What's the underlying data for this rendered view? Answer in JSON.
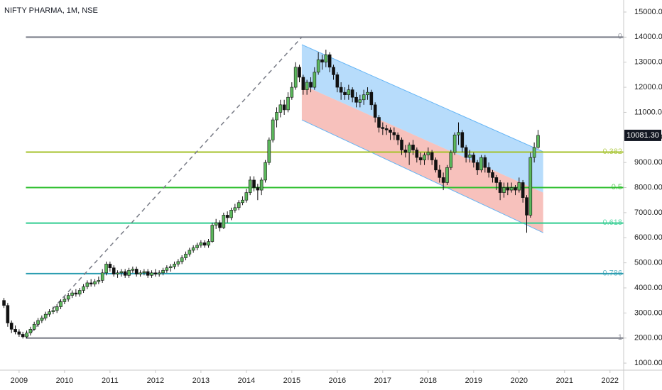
{
  "chart_data": {
    "type": "candlestick",
    "title": "NIFTY PHARMA, 1M, NSE",
    "xlim": [
      2008.58,
      2022.3
    ],
    "xticks": [
      2009,
      2010,
      2011,
      2012,
      2013,
      2014,
      2015,
      2016,
      2017,
      2018,
      2019,
      2020,
      2021,
      2022
    ],
    "ylim": [
      720,
      15480
    ],
    "yticks": [
      {
        "value": 1000,
        "label": "1000.00"
      },
      {
        "value": 2000,
        "label": "2000.00"
      },
      {
        "value": 3000,
        "label": "3000.00"
      },
      {
        "value": 4000,
        "label": "4000.00"
      },
      {
        "value": 5000,
        "label": "5000.00"
      },
      {
        "value": 6000,
        "label": "6000.00"
      },
      {
        "value": 7000,
        "label": "7000.00"
      },
      {
        "value": 8000,
        "label": "8000.00"
      },
      {
        "value": 9000,
        "label": "9000.00"
      },
      {
        "value": 10000,
        "label": "10000.00"
      },
      {
        "value": 11000,
        "label": "11000.00"
      },
      {
        "value": 12000,
        "label": "12000.00"
      },
      {
        "value": 13000,
        "label": "13000.00"
      },
      {
        "value": 14000,
        "label": "14000.00"
      },
      {
        "value": 15000,
        "label": "15000.00"
      }
    ],
    "up_color": "#5cb85c",
    "down_color": "#111111",
    "x": [
      2008.667,
      2008.75,
      2008.833,
      2008.917,
      2009,
      2009.083,
      2009.167,
      2009.25,
      2009.333,
      2009.417,
      2009.5,
      2009.583,
      2009.667,
      2009.75,
      2009.833,
      2009.917,
      2010,
      2010.083,
      2010.167,
      2010.25,
      2010.333,
      2010.417,
      2010.5,
      2010.583,
      2010.667,
      2010.75,
      2010.833,
      2010.917,
      2011,
      2011.083,
      2011.167,
      2011.25,
      2011.333,
      2011.417,
      2011.5,
      2011.583,
      2011.667,
      2011.75,
      2011.833,
      2011.917,
      2012,
      2012.083,
      2012.167,
      2012.25,
      2012.333,
      2012.417,
      2012.5,
      2012.583,
      2012.667,
      2012.75,
      2012.833,
      2012.917,
      2013,
      2013.083,
      2013.167,
      2013.25,
      2013.333,
      2013.417,
      2013.5,
      2013.583,
      2013.667,
      2013.75,
      2013.833,
      2013.917,
      2014,
      2014.083,
      2014.167,
      2014.25,
      2014.333,
      2014.417,
      2014.5,
      2014.583,
      2014.667,
      2014.75,
      2014.833,
      2014.917,
      2015,
      2015.083,
      2015.167,
      2015.25,
      2015.333,
      2015.417,
      2015.5,
      2015.583,
      2015.667,
      2015.75,
      2015.833,
      2015.917,
      2016,
      2016.083,
      2016.167,
      2016.25,
      2016.333,
      2016.417,
      2016.5,
      2016.583,
      2016.667,
      2016.75,
      2016.833,
      2016.917,
      2017,
      2017.083,
      2017.167,
      2017.25,
      2017.333,
      2017.417,
      2017.5,
      2017.583,
      2017.667,
      2017.75,
      2017.833,
      2017.917,
      2018,
      2018.083,
      2018.167,
      2018.25,
      2018.333,
      2018.417,
      2018.5,
      2018.583,
      2018.667,
      2018.75,
      2018.833,
      2018.917,
      2019,
      2019.083,
      2019.167,
      2019.25,
      2019.333,
      2019.417,
      2019.5,
      2019.583,
      2019.667,
      2019.75,
      2019.833,
      2019.917,
      2020,
      2020.083,
      2020.167,
      2020.25,
      2020.333,
      2020.417
    ],
    "open": [
      3500,
      3300,
      2600,
      2350,
      2250,
      2150,
      2050,
      2200,
      2350,
      2550,
      2700,
      2800,
      2950,
      3050,
      3100,
      3250,
      3450,
      3550,
      3700,
      3800,
      3750,
      3900,
      4050,
      4200,
      4150,
      4250,
      4300,
      4600,
      4950,
      4800,
      4550,
      4600,
      4650,
      4500,
      4700,
      4750,
      4550,
      4600,
      4650,
      4500,
      4600,
      4550,
      4600,
      4700,
      4800,
      4850,
      4950,
      5050,
      5200,
      5350,
      5500,
      5600,
      5700,
      5800,
      5700,
      5850,
      6500,
      6600,
      6400,
      6900,
      6800,
      7100,
      7200,
      7400,
      7500,
      7800,
      8300,
      8000,
      7900,
      8300,
      9000,
      9900,
      10700,
      11000,
      11300,
      11100,
      11600,
      12000,
      12800,
      12400,
      11900,
      12200,
      12000,
      12600,
      13100,
      13000,
      13300,
      12800,
      12500,
      12000,
      11800,
      11700,
      11900,
      11600,
      11400,
      11500,
      11700,
      11800,
      11300,
      10800,
      10400,
      10350,
      10300,
      10200,
      10100,
      9900,
      9500,
      9400,
      9700,
      9500,
      9200,
      9100,
      9300,
      9400,
      9100,
      8700,
      8400,
      8200,
      8800,
      9400,
      10100,
      10200,
      9600,
      9200,
      9300,
      9000,
      8700,
      9200,
      8800,
      8600,
      8400,
      8200,
      7800,
      8000,
      7900,
      8000,
      7900,
      8200,
      7600,
      6900,
      9200,
      9600
    ],
    "high": [
      3600,
      3400,
      2700,
      2500,
      2350,
      2250,
      2300,
      2450,
      2650,
      2800,
      2900,
      3050,
      3150,
      3250,
      3350,
      3550,
      3650,
      3800,
      3900,
      3950,
      4000,
      4150,
      4300,
      4350,
      4350,
      4450,
      4750,
      5050,
      5050,
      4900,
      4700,
      4750,
      4750,
      4800,
      4850,
      4850,
      4700,
      4750,
      4750,
      4700,
      4750,
      4700,
      4800,
      4900,
      4950,
      5050,
      5150,
      5300,
      5450,
      5600,
      5700,
      5800,
      5900,
      5900,
      5950,
      6600,
      6750,
      6700,
      7000,
      7050,
      7200,
      7350,
      7500,
      7650,
      7950,
      8450,
      8450,
      8150,
      8400,
      9100,
      10000,
      10800,
      11200,
      11500,
      11500,
      11800,
      12200,
      13000,
      12900,
      12500,
      12300,
      12400,
      12800,
      13400,
      13300,
      13500,
      13400,
      12900,
      12600,
      12200,
      12000,
      12100,
      12000,
      11800,
      11700,
      11900,
      12000,
      11900,
      11400,
      10900,
      10600,
      10500,
      10400,
      10400,
      10200,
      10000,
      9700,
      9800,
      9900,
      9600,
      9400,
      9400,
      9600,
      9500,
      9200,
      8900,
      8600,
      8900,
      9500,
      10200,
      10600,
      10300,
      9700,
      9500,
      9400,
      9100,
      9300,
      9300,
      9000,
      8700,
      8500,
      8300,
      8200,
      8200,
      8200,
      8100,
      8400,
      8300,
      7700,
      9400,
      9800,
      10300
    ],
    "low": [
      3200,
      2450,
      2200,
      2150,
      2050,
      1980,
      1990,
      2100,
      2300,
      2450,
      2600,
      2700,
      2850,
      2950,
      3000,
      3150,
      3350,
      3450,
      3600,
      3650,
      3650,
      3800,
      3950,
      4050,
      4050,
      4150,
      4200,
      4500,
      4650,
      4450,
      4400,
      4450,
      4400,
      4400,
      4600,
      4450,
      4450,
      4500,
      4400,
      4400,
      4450,
      4450,
      4500,
      4600,
      4650,
      4750,
      4850,
      4950,
      5100,
      5250,
      5400,
      5500,
      5600,
      5600,
      5600,
      5800,
      6350,
      6250,
      6350,
      6600,
      6700,
      7000,
      7100,
      7300,
      7400,
      7700,
      7850,
      7500,
      7700,
      8200,
      8900,
      9800,
      10400,
      10800,
      10900,
      11000,
      11500,
      11900,
      12200,
      11700,
      11700,
      11800,
      11900,
      12500,
      12700,
      12800,
      12600,
      12300,
      11800,
      11500,
      11500,
      11500,
      11400,
      11200,
      11200,
      11300,
      11500,
      11100,
      10600,
      10200,
      10100,
      10100,
      9900,
      9900,
      9700,
      9300,
      9200,
      8900,
      9300,
      9000,
      8900,
      8900,
      9100,
      8900,
      8600,
      8200,
      7900,
      8100,
      8700,
      9300,
      9700,
      9400,
      9000,
      9000,
      8800,
      8500,
      8600,
      8600,
      8400,
      8200,
      7900,
      7500,
      7600,
      7700,
      7800,
      7700,
      7800,
      7400,
      6200,
      6800,
      9000,
      9550
    ],
    "close": [
      3300,
      2600,
      2350,
      2250,
      2150,
      2050,
      2200,
      2350,
      2550,
      2700,
      2800,
      2950,
      3050,
      3100,
      3250,
      3450,
      3550,
      3700,
      3800,
      3750,
      3900,
      4050,
      4200,
      4150,
      4250,
      4300,
      4600,
      4950,
      4800,
      4550,
      4600,
      4650,
      4500,
      4700,
      4750,
      4550,
      4600,
      4650,
      4500,
      4600,
      4550,
      4600,
      4700,
      4800,
      4850,
      4950,
      5050,
      5200,
      5350,
      5500,
      5600,
      5700,
      5800,
      5700,
      5850,
      6500,
      6600,
      6400,
      6900,
      6800,
      7100,
      7200,
      7400,
      7500,
      7800,
      8300,
      8000,
      7900,
      8300,
      9000,
      9900,
      10700,
      11000,
      11300,
      11100,
      11600,
      12000,
      12800,
      12400,
      11900,
      12200,
      12000,
      12600,
      13100,
      13000,
      13300,
      12800,
      12500,
      12000,
      11800,
      11700,
      11900,
      11600,
      11400,
      11500,
      11700,
      11800,
      11300,
      10800,
      10400,
      10350,
      10300,
      10200,
      10100,
      9900,
      9500,
      9400,
      9700,
      9500,
      9200,
      9100,
      9300,
      9400,
      9100,
      8700,
      8400,
      8200,
      8800,
      9400,
      10100,
      10200,
      9600,
      9200,
      9300,
      9000,
      8700,
      9200,
      8800,
      8600,
      8400,
      8200,
      7800,
      8000,
      7900,
      8000,
      7900,
      8200,
      7600,
      6900,
      9200,
      9600,
      10081.3
    ],
    "last_price": {
      "value": 10081.3,
      "label": "10081.30"
    },
    "trend_line": {
      "x": [
        2009.15,
        2015.22
      ],
      "y": [
        2000,
        14000
      ],
      "color": "#787b86"
    },
    "fib_levels": [
      {
        "label": "0",
        "value": 14000,
        "color": "#787b86"
      },
      {
        "label": "0.382",
        "value": 9416,
        "color": "#a4c22a"
      },
      {
        "label": "0.5",
        "value": 8000,
        "color": "#2fbf2f"
      },
      {
        "label": "0.618",
        "value": 6584,
        "color": "#2ecc8f"
      },
      {
        "label": "0.786",
        "value": 4568,
        "color": "#2a9db0"
      },
      {
        "label": "1",
        "value": 2000,
        "color": "#787b86"
      }
    ],
    "channel": {
      "x": [
        2015.22,
        2020.53
      ],
      "upper": [
        13700,
        9430
      ],
      "middle": [
        12100,
        7800
      ],
      "lower": [
        10700,
        6200
      ],
      "upper_fill": "#90caf9",
      "lower_fill": "#f4a6a0",
      "line_color": "#64b5f6"
    }
  }
}
